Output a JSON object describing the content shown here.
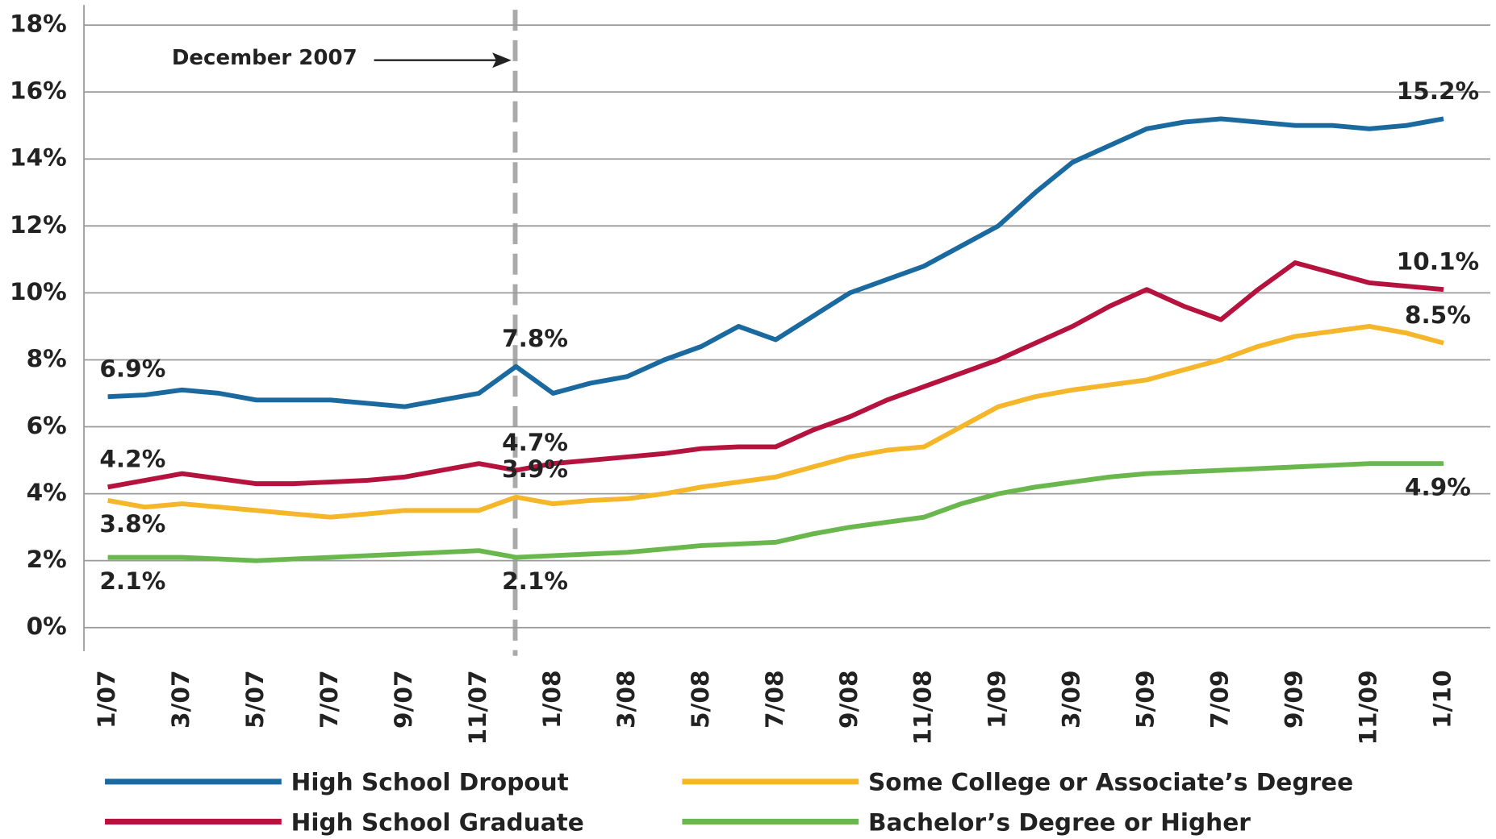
{
  "chart_data": {
    "type": "line",
    "annotation": "December 2007",
    "categories": [
      "1/07",
      null,
      "3/07",
      null,
      "5/07",
      null,
      "7/07",
      null,
      "9/07",
      null,
      "11/07",
      null,
      "1/08",
      null,
      "3/08",
      null,
      "5/08",
      null,
      "7/08",
      null,
      "9/08",
      null,
      "11/08",
      null,
      "1/09",
      null,
      "3/09",
      null,
      "5/09",
      null,
      "7/09",
      null,
      "9/09",
      null,
      "11/09",
      null,
      "1/10"
    ],
    "ylim": [
      -0.7,
      18.6
    ],
    "yticks": [
      {
        "value": 0,
        "label": "0%"
      },
      {
        "value": 2,
        "label": "2%"
      },
      {
        "value": 4,
        "label": "4%"
      },
      {
        "value": 6,
        "label": "6%"
      },
      {
        "value": 8,
        "label": "8%"
      },
      {
        "value": 10,
        "label": "10%"
      },
      {
        "value": 12,
        "label": "12%"
      },
      {
        "value": 14,
        "label": "14%"
      },
      {
        "value": 16,
        "label": "16%"
      },
      {
        "value": 18,
        "label": "18%"
      }
    ],
    "grid": true,
    "series": [
      {
        "name": "High School Dropout",
        "color": "#1a6aa0",
        "values": [
          6.9,
          6.95,
          7.1,
          7.0,
          6.8,
          6.8,
          6.8,
          6.7,
          6.6,
          6.8,
          7.0,
          7.8,
          7.0,
          7.3,
          7.5,
          8.0,
          8.4,
          9.0,
          8.6,
          9.3,
          10.0,
          10.4,
          10.8,
          11.4,
          12.0,
          13.0,
          13.9,
          14.4,
          14.9,
          15.1,
          15.2,
          15.1,
          15.0,
          15.0,
          14.9,
          15.0,
          15.2
        ],
        "value_labels": [
          "6.9%",
          null,
          null,
          null,
          null,
          null,
          null,
          null,
          null,
          null,
          null,
          "7.8%",
          null,
          null,
          null,
          null,
          null,
          null,
          null,
          null,
          null,
          null,
          null,
          null,
          null,
          null,
          null,
          null,
          null,
          null,
          null,
          null,
          null,
          null,
          null,
          null,
          "15.2%"
        ]
      },
      {
        "name": "High School Graduate",
        "color": "#b5123e",
        "values": [
          4.2,
          4.4,
          4.6,
          4.45,
          4.3,
          4.3,
          4.35,
          4.4,
          4.5,
          4.7,
          4.9,
          4.7,
          4.9,
          5.0,
          5.1,
          5.2,
          5.35,
          5.4,
          5.4,
          5.9,
          6.3,
          6.8,
          7.2,
          7.6,
          8.0,
          8.5,
          9.0,
          9.6,
          10.1,
          9.6,
          9.2,
          10.1,
          10.9,
          10.6,
          10.3,
          10.2,
          10.1
        ],
        "value_labels": [
          "4.2%",
          null,
          null,
          null,
          null,
          null,
          null,
          null,
          null,
          null,
          null,
          "4.7%",
          null,
          null,
          null,
          null,
          null,
          null,
          null,
          null,
          null,
          null,
          null,
          null,
          null,
          null,
          null,
          null,
          null,
          null,
          null,
          null,
          null,
          null,
          null,
          null,
          "10.1%"
        ]
      },
      {
        "name": "Some College or Associate’s Degree",
        "color": "#f5b62a",
        "values": [
          3.8,
          3.6,
          3.7,
          3.6,
          3.5,
          3.4,
          3.3,
          3.4,
          3.5,
          3.5,
          3.5,
          3.9,
          3.7,
          3.8,
          3.85,
          4.0,
          4.2,
          4.35,
          4.5,
          4.8,
          5.1,
          5.3,
          5.4,
          6.0,
          6.6,
          6.9,
          7.1,
          7.25,
          7.4,
          7.7,
          8.0,
          8.4,
          8.7,
          8.85,
          9.0,
          8.8,
          8.5
        ],
        "value_labels": [
          "3.8%",
          null,
          null,
          null,
          null,
          null,
          null,
          null,
          null,
          null,
          null,
          "3.9%",
          null,
          null,
          null,
          null,
          null,
          null,
          null,
          null,
          null,
          null,
          null,
          null,
          null,
          null,
          null,
          null,
          null,
          null,
          null,
          null,
          null,
          null,
          null,
          null,
          "8.5%"
        ]
      },
      {
        "name": "Bachelor’s Degree or Higher",
        "color": "#6ab84d",
        "values": [
          2.1,
          2.1,
          2.1,
          2.05,
          2.0,
          2.05,
          2.1,
          2.15,
          2.2,
          2.25,
          2.3,
          2.1,
          2.15,
          2.2,
          2.25,
          2.35,
          2.45,
          2.5,
          2.55,
          2.8,
          3.0,
          3.15,
          3.3,
          3.7,
          4.0,
          4.2,
          4.35,
          4.5,
          4.6,
          4.65,
          4.7,
          4.75,
          4.8,
          4.85,
          4.9,
          4.9,
          4.9
        ],
        "value_labels": [
          "2.1%",
          null,
          null,
          null,
          null,
          null,
          null,
          null,
          null,
          null,
          null,
          "2.1%",
          null,
          null,
          null,
          null,
          null,
          null,
          null,
          null,
          null,
          null,
          null,
          null,
          null,
          null,
          null,
          null,
          null,
          null,
          null,
          null,
          null,
          null,
          null,
          null,
          "4.9%"
        ]
      }
    ]
  }
}
